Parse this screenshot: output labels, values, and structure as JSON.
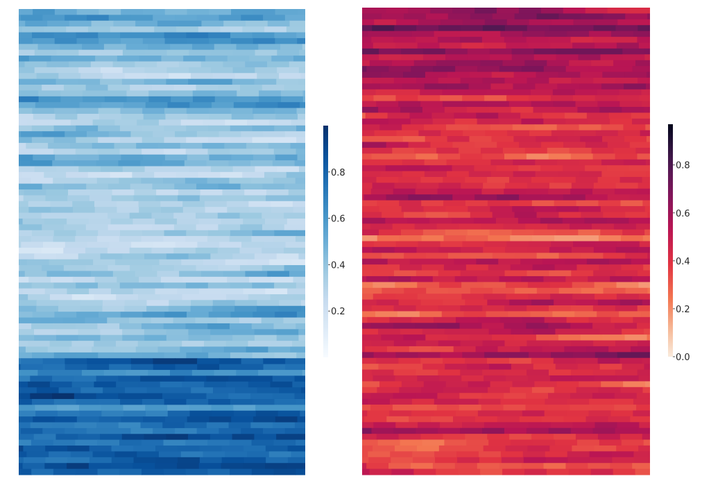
{
  "chart_data": [
    {
      "type": "heatmap",
      "colormap": "Blues",
      "grid": false,
      "n_rows": 80,
      "n_cols": 13,
      "values_description_free": true,
      "vmin": 0.0,
      "vmax": 1.0,
      "colorbar": {
        "ticks": [
          0.2,
          0.4,
          0.6,
          0.8
        ],
        "tick_labels": [
          "0.2",
          "0.4",
          "0.6",
          "0.8"
        ]
      },
      "colors": {
        "low": "#f7fbff",
        "mid": "#6baed6",
        "high": "#08306b"
      },
      "row_means": [
        0.55,
        0.5,
        0.45,
        0.35,
        0.55,
        0.6,
        0.45,
        0.4,
        0.5,
        0.4,
        0.35,
        0.3,
        0.45,
        0.35,
        0.4,
        0.55,
        0.6,
        0.45,
        0.35,
        0.3,
        0.4,
        0.45,
        0.3,
        0.4,
        0.35,
        0.5,
        0.45,
        0.3,
        0.35,
        0.4,
        0.45,
        0.3,
        0.35,
        0.25,
        0.4,
        0.45,
        0.35,
        0.3,
        0.45,
        0.4,
        0.3,
        0.25,
        0.35,
        0.3,
        0.45,
        0.5,
        0.35,
        0.4,
        0.3,
        0.25,
        0.35,
        0.45,
        0.5,
        0.4,
        0.45,
        0.35,
        0.4,
        0.3,
        0.45,
        0.5,
        0.8,
        0.75,
        0.7,
        0.8,
        0.85,
        0.75,
        0.9,
        0.8,
        0.7,
        0.85,
        0.8,
        0.75,
        0.8,
        0.85,
        0.7,
        0.8,
        0.75,
        0.8,
        0.85,
        0.75
      ]
    },
    {
      "type": "heatmap",
      "colormap": "rocket_r",
      "grid": false,
      "n_rows": 80,
      "n_cols": 13,
      "vmin": 0.0,
      "vmax": 0.97,
      "colorbar": {
        "ticks": [
          0.0,
          0.2,
          0.4,
          0.6,
          0.8
        ],
        "tick_labels": [
          "0.0",
          "0.2",
          "0.4",
          "0.6",
          "0.8"
        ]
      },
      "colors": {
        "low": "#faebdd",
        "mid": "#cb1b4f",
        "high": "#03051a"
      },
      "row_means": [
        0.6,
        0.65,
        0.55,
        0.7,
        0.6,
        0.5,
        0.55,
        0.65,
        0.5,
        0.55,
        0.6,
        0.5,
        0.45,
        0.55,
        0.5,
        0.45,
        0.5,
        0.55,
        0.45,
        0.5,
        0.4,
        0.45,
        0.35,
        0.5,
        0.4,
        0.3,
        0.45,
        0.5,
        0.35,
        0.4,
        0.45,
        0.5,
        0.55,
        0.4,
        0.45,
        0.5,
        0.6,
        0.45,
        0.35,
        0.3,
        0.4,
        0.45,
        0.35,
        0.5,
        0.45,
        0.4,
        0.5,
        0.35,
        0.4,
        0.45,
        0.5,
        0.35,
        0.4,
        0.45,
        0.5,
        0.4,
        0.35,
        0.45,
        0.5,
        0.6,
        0.55,
        0.45,
        0.4,
        0.5,
        0.35,
        0.4,
        0.45,
        0.5,
        0.35,
        0.4,
        0.45,
        0.5,
        0.55,
        0.45,
        0.35,
        0.4,
        0.5,
        0.45,
        0.35,
        0.4
      ]
    }
  ]
}
